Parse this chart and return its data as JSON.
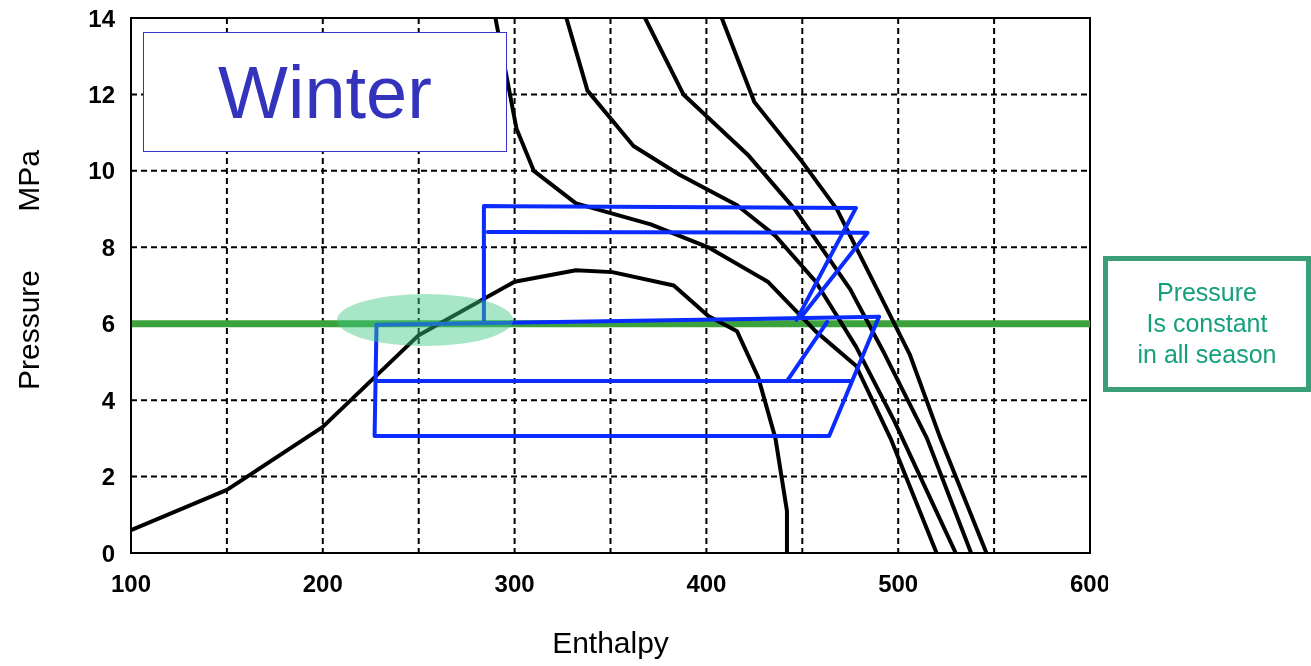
{
  "chart_data": {
    "type": "line",
    "title": "Winter",
    "xlabel": "Enthalpy",
    "ylabel": "Pressure MPa",
    "xlim": [
      100,
      600
    ],
    "xticks": [
      100,
      {
        "value": 150,
        "label": null
      },
      200,
      {
        "value": 250,
        "label": null
      },
      300,
      {
        "value": 350,
        "label": null
      },
      400,
      {
        "value": 450,
        "label": null
      },
      500,
      {
        "value": 550,
        "label": null
      },
      600
    ],
    "ylim": [
      0,
      14
    ],
    "yticks": [
      0,
      2,
      4,
      6,
      8,
      10,
      12,
      14
    ],
    "grid": true,
    "line_style": "solid",
    "marker": "none",
    "series": [
      {
        "color": "#000000",
        "x": [
          100,
          150,
          200,
          250,
          300,
          332,
          351,
          383,
          401,
          416,
          427,
          436,
          442,
          442
        ],
        "values": [
          0.6,
          1.65,
          3.3,
          5.7,
          7.1,
          7.4,
          7.35,
          7.0,
          6.2,
          5.8,
          4.6,
          3.0,
          1.1,
          0
        ]
      },
      {
        "color": "#000000",
        "x": [
          290,
          301,
          310,
          332,
          371,
          401,
          432,
          457,
          478,
          496,
          520
        ],
        "values": [
          14,
          11.1,
          10.0,
          9.15,
          8.6,
          8.0,
          7.1,
          5.8,
          4.9,
          3.0,
          0
        ]
      },
      {
        "color": "#000000",
        "x": [
          327,
          338,
          362,
          386,
          416,
          436,
          457,
          478,
          498,
          530
        ],
        "values": [
          14,
          12.1,
          10.65,
          9.9,
          9.1,
          8.3,
          7.1,
          5.4,
          3.45,
          0
        ]
      },
      {
        "color": "#000000",
        "x": [
          368,
          388,
          422,
          446,
          475,
          493,
          515,
          538
        ],
        "values": [
          14,
          12.0,
          10.4,
          9.0,
          6.9,
          5.2,
          3.0,
          0
        ]
      },
      {
        "color": "#000000",
        "x": [
          408,
          425,
          449,
          468,
          487,
          506,
          522,
          546
        ],
        "values": [
          14,
          11.8,
          10.3,
          9.0,
          7.1,
          5.2,
          3.0,
          0
        ]
      },
      {
        "color": "#0a2cff",
        "x": [
          284,
          284,
          478,
          447
        ],
        "values": [
          6.05,
          9.08,
          9.03,
          6.1
        ]
      },
      {
        "color": "#0a2cff",
        "x": [
          286,
          484,
          449
        ],
        "values": [
          8.4,
          8.38,
          6.15
        ]
      },
      {
        "color": "#0a2cff",
        "x": [
          228,
          490
        ],
        "values": [
          5.97,
          6.18
        ]
      },
      {
        "color": "#0a2cff",
        "x": [
          228,
          227,
          464,
          490
        ],
        "values": [
          5.97,
          3.06,
          3.06,
          6.18
        ]
      },
      {
        "color": "#0a2cff",
        "x": [
          228,
          475
        ],
        "values": [
          4.5,
          4.5
        ]
      },
      {
        "color": "#0a2cff",
        "x": [
          442,
          463
        ],
        "values": [
          4.5,
          6.05
        ]
      }
    ],
    "ref_lines": [
      {
        "axis": "y",
        "value": 6,
        "color": "#3ca33c"
      }
    ],
    "annotations": [
      "Pressure\nIs constant\nin all season"
    ]
  }
}
